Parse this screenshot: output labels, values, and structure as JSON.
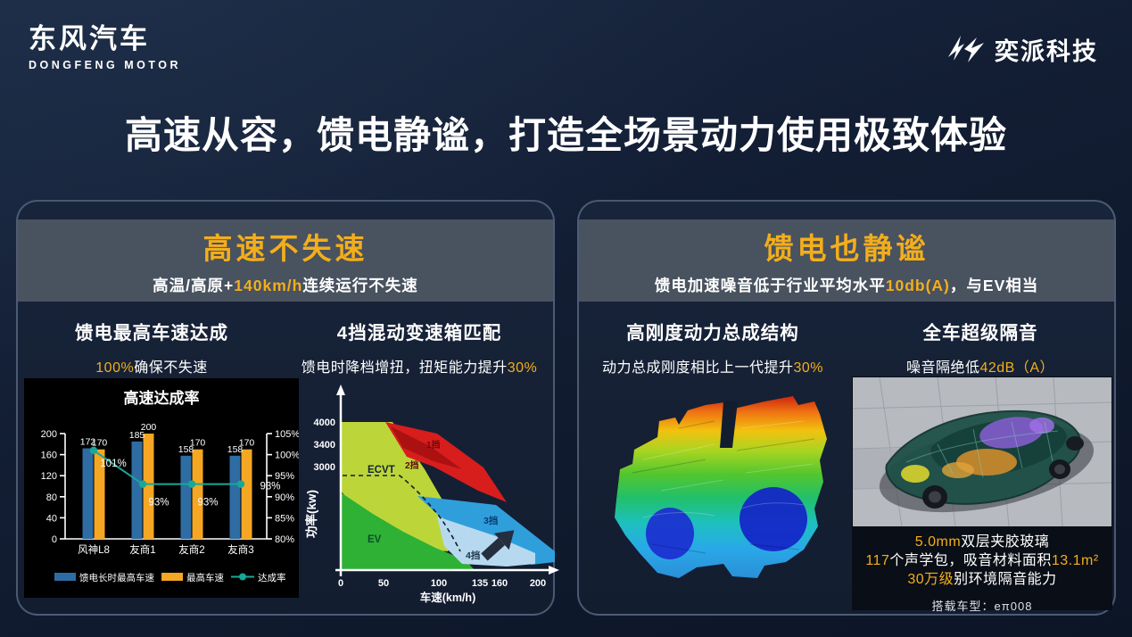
{
  "colors": {
    "accent": "#f3ae1c",
    "bar_blue": "#2e6da4",
    "bar_orange": "#f5a623",
    "line_teal": "#18a897"
  },
  "header": {
    "brand_left_cn": "东风汽车",
    "brand_left_en": "DONGFENG MOTOR",
    "brand_right": "奕派科技",
    "title": "高速从容，馈电静谧，打造全场景动力使用极致体验"
  },
  "left_panel": {
    "title": "高速不失速",
    "subtitle": [
      {
        "t": "高温/高原+"
      },
      {
        "t": "140km/h",
        "hl": true
      },
      {
        "t": "连续运行不失速"
      }
    ],
    "sections": {
      "speed": {
        "heading": "馈电最高车速达成",
        "sub": [
          {
            "t": "100%",
            "hl": true
          },
          {
            "t": "确保不失速"
          }
        ]
      },
      "gearbox": {
        "heading": "4挡混动变速箱匹配",
        "sub": [
          {
            "t": "馈电时降档增扭，扭矩能力提升"
          },
          {
            "t": "30%",
            "hl": true
          }
        ]
      }
    }
  },
  "right_panel": {
    "title": "馈电也静谧",
    "subtitle": [
      {
        "t": "馈电加速噪音低于行业平均水平"
      },
      {
        "t": "10db(A)",
        "hl": true
      },
      {
        "t": "，与EV相当"
      }
    ],
    "sections": {
      "rigidity": {
        "heading": "高刚度动力总成结构",
        "sub": [
          {
            "t": "动力总成刚度相比上一代提升"
          },
          {
            "t": "30%",
            "hl": true
          }
        ]
      },
      "insulation": {
        "heading": "全车超级隔音",
        "sub": [
          {
            "t": "噪音隔绝低"
          },
          {
            "t": "42dB（A）",
            "hl": true
          }
        ],
        "notes": [
          [
            {
              "t": "5.0mm",
              "hl": true
            },
            {
              "t": "双层夹胶玻璃"
            }
          ],
          [
            {
              "t": "117",
              "hl": true
            },
            {
              "t": "个声学包，吸音材料面积"
            },
            {
              "t": "13.1m²",
              "hl": true
            }
          ],
          [
            {
              "t": "30万级",
              "hl": true
            },
            {
              "t": "别环境隔音能力"
            }
          ]
        ],
        "model_line": "搭载车型：eπ008"
      }
    }
  },
  "chart_data": [
    {
      "type": "bar",
      "title": "高速达成率",
      "categories": [
        "风神L8",
        "友商1",
        "友商2",
        "友商3"
      ],
      "series": [
        {
          "name": "馈电长时最高车速",
          "kind": "bar",
          "color": "#2e6da4",
          "values": [
            172,
            185,
            158,
            158
          ]
        },
        {
          "name": "最高车速",
          "kind": "bar",
          "color": "#f5a623",
          "values": [
            170,
            200,
            170,
            170
          ]
        },
        {
          "name": "达成率",
          "kind": "line",
          "color": "#18a897",
          "values": [
            101,
            93,
            93,
            93
          ],
          "unit": "%"
        }
      ],
      "left_axis": {
        "min": 0,
        "max": 200,
        "ticks": [
          0,
          40,
          80,
          120,
          160,
          200
        ]
      },
      "right_axis": {
        "min": 80,
        "max": 105,
        "ticks": [
          80,
          85,
          90,
          95,
          100,
          105
        ],
        "unit": "%"
      },
      "legend_position": "bottom"
    },
    {
      "type": "area",
      "xlabel": "车速(km/h)",
      "ylabel": "功率(kw)",
      "x_ticks": [
        0,
        50,
        100,
        135,
        160,
        200
      ],
      "y_ticks": [
        4000,
        3400,
        3000
      ],
      "regions": [
        {
          "label": "ECVT",
          "color": "#bcd63a"
        },
        {
          "label": "EV",
          "color": "#2eb135"
        },
        {
          "label": "1挡",
          "color": "#d81d1d"
        },
        {
          "label": "2挡",
          "color": "#a40f0f"
        },
        {
          "label": "3挡",
          "color": "#2f9fdc"
        },
        {
          "label": "4挡",
          "color": "#b7d9ef"
        }
      ],
      "annotation": "upshift-arrow"
    }
  ]
}
